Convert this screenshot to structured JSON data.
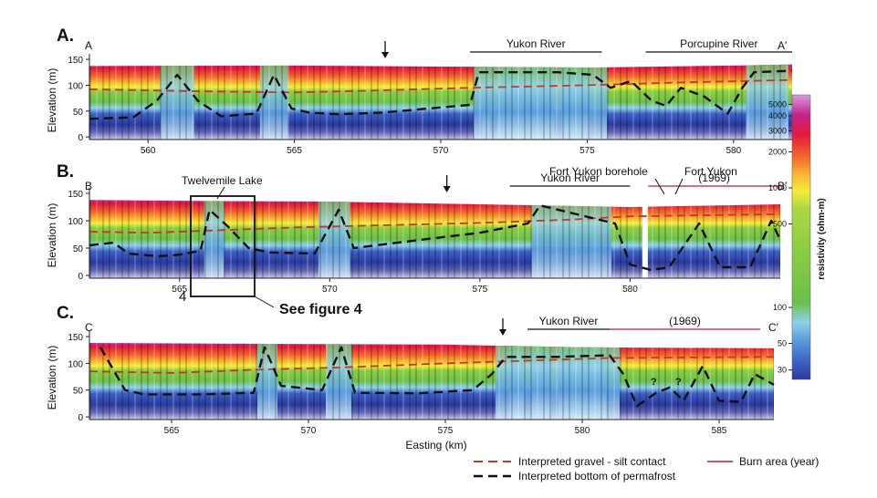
{
  "colors": {
    "scale": [
      "#2b3a9e",
      "#3d5fc4",
      "#5a9fdc",
      "#8fd0ec",
      "#6cc04a",
      "#a9d843",
      "#f2ee3a",
      "#f7b733",
      "#f26a2a",
      "#e21b3c",
      "#c4248a",
      "#d99be0"
    ],
    "permafrost_line": "#111111",
    "gravel_line": "#c0392b",
    "burn_line": "#b0203a"
  },
  "chart_data": {
    "type": "heatmap",
    "xlabel": "Easting (km)",
    "ylabel": "Elevation (m)",
    "colorbar": {
      "label": "resistivity (ohm-m)",
      "ticks": [
        "5000",
        "4000",
        "3000",
        "2000",
        "1000",
        "500",
        "100",
        "50",
        "30"
      ],
      "values": [
        5000,
        4000,
        3000,
        2000,
        1000,
        500,
        100,
        50,
        30
      ],
      "range": [
        25,
        6000
      ],
      "scale": "log"
    },
    "panels": [
      {
        "letter": "A.",
        "start_label": "A",
        "end_label": "A′",
        "xlim": [
          558,
          582
        ],
        "ylim": [
          -5,
          150
        ],
        "xticks": [
          560,
          565,
          570,
          575,
          580
        ],
        "xtick_labels": [
          "560",
          "565",
          "570",
          "575",
          "580"
        ],
        "yticks": [
          0,
          50,
          100,
          150
        ],
        "ytick_labels": [
          "0",
          "50",
          "100",
          "150"
        ],
        "surface": [
          [
            558,
            137
          ],
          [
            565,
            138
          ],
          [
            570,
            136
          ],
          [
            575,
            134
          ],
          [
            580,
            138
          ],
          [
            582,
            140
          ]
        ],
        "gravel_contact": [
          [
            558,
            92
          ],
          [
            562,
            88
          ],
          [
            565,
            86
          ],
          [
            568,
            90
          ],
          [
            571,
            95
          ],
          [
            575,
            100
          ],
          [
            578,
            105
          ],
          [
            582,
            110
          ]
        ],
        "permafrost_bottom": [
          [
            558,
            35
          ],
          [
            559.5,
            38
          ],
          [
            560.3,
            70
          ],
          [
            561,
            120
          ],
          [
            561.7,
            70
          ],
          [
            562.5,
            40
          ],
          [
            563.7,
            45
          ],
          [
            564.3,
            120
          ],
          [
            564.9,
            55
          ],
          [
            565.5,
            47
          ],
          [
            566.5,
            44
          ],
          [
            568,
            47
          ],
          [
            571,
            62
          ],
          [
            571.3,
            125
          ],
          [
            571.8,
            125
          ],
          [
            574,
            125
          ],
          [
            575.2,
            120
          ],
          [
            575.8,
            95
          ],
          [
            576.5,
            108
          ],
          [
            577.2,
            70
          ],
          [
            577.7,
            60
          ],
          [
            578.2,
            95
          ],
          [
            579,
            78
          ],
          [
            579.8,
            45
          ],
          [
            580.3,
            95
          ],
          [
            580.7,
            125
          ],
          [
            582,
            128
          ]
        ],
        "annotations": [
          {
            "text": "Yukon River",
            "x1": 571,
            "x2": 575.5
          },
          {
            "text": "Porcupine River",
            "x1": 577,
            "x2": 582
          }
        ],
        "arrows": [
          568.1
        ]
      },
      {
        "letter": "B.",
        "start_label": "B",
        "end_label": "B′",
        "xlim": [
          562,
          585
        ],
        "ylim": [
          -5,
          150
        ],
        "xticks": [
          565,
          570,
          575,
          580
        ],
        "xtick_labels": [
          "565",
          "570",
          "575",
          "580"
        ],
        "yticks": [
          0,
          50,
          100,
          150
        ],
        "ytick_labels": [
          "0",
          "50",
          "100",
          "150"
        ],
        "surface": [
          [
            562,
            138
          ],
          [
            566,
            136
          ],
          [
            570,
            135
          ],
          [
            575,
            130
          ],
          [
            580,
            125
          ],
          [
            585,
            130
          ]
        ],
        "gravel_contact": [
          [
            562,
            80
          ],
          [
            564,
            78
          ],
          [
            566,
            82
          ],
          [
            569,
            88
          ],
          [
            572,
            92
          ],
          [
            575,
            96
          ],
          [
            578,
            102
          ],
          [
            580,
            108
          ],
          [
            585,
            112
          ]
        ],
        "permafrost_bottom": [
          [
            562,
            55
          ],
          [
            562.8,
            60
          ],
          [
            563.3,
            40
          ],
          [
            564.3,
            35
          ],
          [
            565,
            38
          ],
          [
            565.7,
            45
          ],
          [
            566,
            120
          ],
          [
            566.6,
            90
          ],
          [
            567.3,
            50
          ],
          [
            568,
            42
          ],
          [
            569.5,
            40
          ],
          [
            570.3,
            120
          ],
          [
            570.8,
            50
          ],
          [
            573,
            65
          ],
          [
            575,
            78
          ],
          [
            576.6,
            95
          ],
          [
            577,
            128
          ],
          [
            579.5,
            95
          ],
          [
            580,
            20
          ],
          [
            580.7,
            10
          ],
          [
            581.3,
            15
          ],
          [
            582.3,
            95
          ],
          [
            583,
            15
          ],
          [
            584,
            15
          ],
          [
            584.7,
            100
          ],
          [
            585,
            65
          ]
        ],
        "annotations": [
          {
            "text": "Yukon River",
            "x1": 576,
            "x2": 580
          },
          {
            "text": "Fort Yukon borehole",
            "x1": null,
            "x2": null
          },
          {
            "text": "Fort Yukon",
            "x1": null,
            "x2": null
          },
          {
            "text": "(1969)",
            "x1": 580.6,
            "x2": 585
          }
        ],
        "arrows": [
          573.9
        ],
        "callouts": {
          "lake": "Twelvemile Lake",
          "inset_number": "4",
          "see_figure": "See figure 4"
        }
      },
      {
        "letter": "C.",
        "start_label": "C",
        "end_label": "C′",
        "xlim": [
          562,
          587
        ],
        "ylim": [
          -5,
          150
        ],
        "xticks": [
          565,
          570,
          575,
          580,
          585
        ],
        "xtick_labels": [
          "565",
          "570",
          "575",
          "580",
          "585"
        ],
        "yticks": [
          0,
          50,
          100,
          150
        ],
        "ytick_labels": [
          "0",
          "50",
          "100",
          "150"
        ],
        "surface": [
          [
            562,
            138
          ],
          [
            566,
            137
          ],
          [
            570,
            136
          ],
          [
            575,
            135
          ],
          [
            580,
            130
          ],
          [
            587,
            128
          ]
        ],
        "gravel_contact": [
          [
            562,
            85
          ],
          [
            565,
            82
          ],
          [
            568,
            88
          ],
          [
            571,
            92
          ],
          [
            575,
            100
          ],
          [
            578,
            105
          ],
          [
            581,
            110
          ],
          [
            587,
            112
          ]
        ],
        "permafrost_bottom": [
          [
            562.4,
            130
          ],
          [
            563.3,
            50
          ],
          [
            564,
            42
          ],
          [
            566,
            42
          ],
          [
            568,
            45
          ],
          [
            568.4,
            130
          ],
          [
            569,
            58
          ],
          [
            570.5,
            50
          ],
          [
            571.2,
            130
          ],
          [
            571.7,
            45
          ],
          [
            574,
            44
          ],
          [
            576,
            50
          ],
          [
            576.7,
            80
          ],
          [
            577.2,
            112
          ],
          [
            578,
            112
          ],
          [
            579,
            112
          ],
          [
            581,
            115
          ],
          [
            581.5,
            80
          ],
          [
            582,
            20
          ],
          [
            582.7,
            45
          ],
          [
            583.2,
            55
          ],
          [
            583.7,
            30
          ],
          [
            584.4,
            95
          ],
          [
            585,
            30
          ],
          [
            585.8,
            28
          ],
          [
            586.3,
            80
          ],
          [
            587,
            60
          ]
        ],
        "annotations": [
          {
            "text": "Yukon River",
            "x1": 578,
            "x2": 581
          },
          {
            "text": "(1969)",
            "x1": 581,
            "x2": 586.5
          }
        ],
        "arrows": [
          577.1
        ],
        "question_marks": [
          "?",
          "?"
        ]
      }
    ],
    "legend": {
      "gravel": "Interpreted gravel - silt contact",
      "permafrost": "Interpreted bottom of permafrost",
      "burn": "Burn area (year)"
    }
  }
}
